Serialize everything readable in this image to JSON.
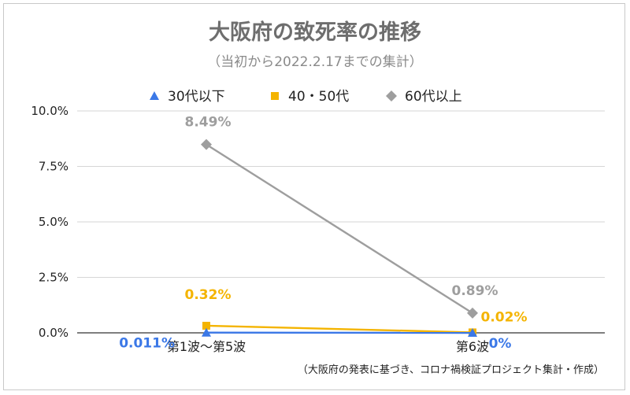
{
  "chart_data": {
    "type": "line",
    "title": "大阪府の致死率の推移",
    "subtitle": "（当初から2022.2.17までの集計）",
    "source_note": "（大阪府の発表に基づき、コロナ禍検証プロジェクト集計・作成）",
    "categories": [
      "第1波〜第5波",
      "第6波"
    ],
    "ylim": [
      0,
      10
    ],
    "yticks": [
      "0.0%",
      "2.5%",
      "5.0%",
      "7.5%",
      "10.0%"
    ],
    "ytick_values": [
      0,
      2.5,
      5,
      7.5,
      10
    ],
    "grid": true,
    "legend_position": "top",
    "series": [
      {
        "name": "30代以下",
        "values": [
          0.011,
          0
        ],
        "labels": [
          "0.011%",
          "0%"
        ],
        "color": "#3b78e7",
        "marker": "triangle"
      },
      {
        "name": "40・50代",
        "values": [
          0.32,
          0.02
        ],
        "labels": [
          "0.32%",
          "0.02%"
        ],
        "color": "#f4b400",
        "marker": "square"
      },
      {
        "name": "60代以上",
        "values": [
          8.49,
          0.89
        ],
        "labels": [
          "8.49%",
          "0.89%"
        ],
        "color": "#9e9e9e",
        "marker": "diamond"
      }
    ]
  }
}
